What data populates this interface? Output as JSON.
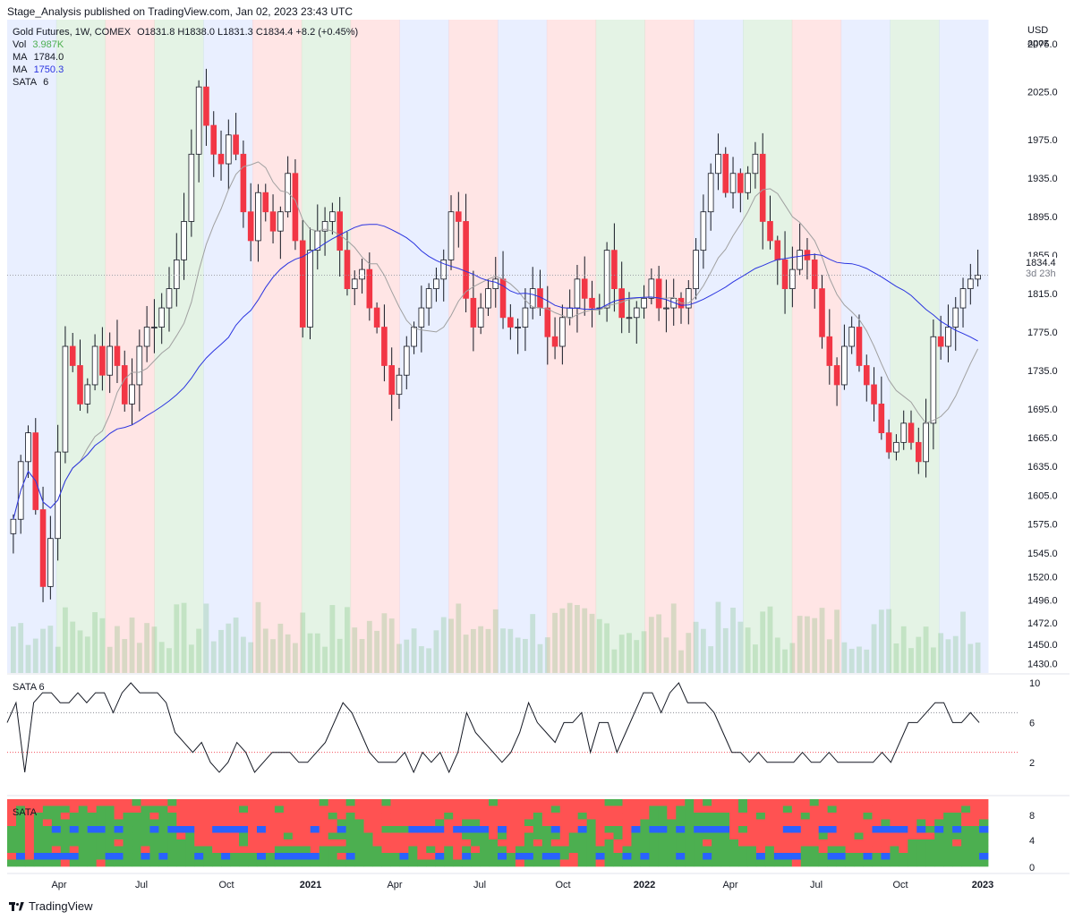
{
  "header": {
    "published": "Stage_Analysis published on TradingView.com, Jan 02, 2023 23:43 UTC"
  },
  "legend": {
    "instrument": "Gold Futures, 1W, COMEX",
    "ohlc": "O1831.8  H1838.0  L1831.3  C1834.4  +8.2 (+0.45%)",
    "vol_label": "Vol",
    "vol_value": "3.987K",
    "ma1_label": "MA",
    "ma1_value": "1784.0",
    "ma2_label": "MA",
    "ma2_value": "1750.3",
    "sata_label": "SATA",
    "sata_value": "6"
  },
  "price_axis": {
    "currency": "USD",
    "sub": "apoz",
    "ticks": [
      "2075.0",
      "2025.0",
      "1975.0",
      "1935.0",
      "1895.0",
      "1855.0",
      "1815.0",
      "1775.0",
      "1735.0",
      "1695.0",
      "1665.0",
      "1635.0",
      "1605.0",
      "1575.0",
      "1545.0",
      "1520.0",
      "1496.0",
      "1472.0",
      "1450.0",
      "1430.0"
    ],
    "last_price": "1834.4",
    "countdown": "3d 23h"
  },
  "pane2": {
    "label": "SATA 6",
    "ticks": [
      "10",
      "6",
      "2"
    ]
  },
  "pane3": {
    "label": "SATA",
    "ticks": [
      "8",
      "4",
      "0"
    ]
  },
  "x_axis": [
    "Apr",
    "Jul",
    "Oct",
    "2021",
    "Apr",
    "Jul",
    "Oct",
    "2022",
    "Apr",
    "Jul",
    "Oct",
    "2023"
  ],
  "footer": {
    "brand": "TradingView"
  },
  "colors": {
    "up": "#ffffff",
    "down": "#f23645",
    "stage_green": "#4caf50",
    "stage_red": "#ff5252",
    "stage_blue": "#2962ff",
    "ma_fast": "#a0a0a0",
    "ma_slow": "#2a34e0"
  },
  "chart_data": [
    {
      "type": "candlestick",
      "title": "Gold Futures, 1W, COMEX",
      "ylim": [
        1420,
        2100
      ],
      "stage_bands": [
        "blue",
        "green",
        "red",
        "green",
        "blue",
        "red",
        "green",
        "red",
        "blue",
        "red",
        "blue",
        "red",
        "green",
        "red",
        "blue",
        "green",
        "red",
        "blue",
        "green",
        "blue"
      ],
      "closes": [
        1580,
        1640,
        1670,
        1590,
        1510,
        1560,
        1650,
        1760,
        1740,
        1700,
        1720,
        1760,
        1730,
        1760,
        1740,
        1700,
        1720,
        1760,
        1780,
        1780,
        1800,
        1820,
        1850,
        1890,
        1960,
        2030,
        1990,
        1960,
        1950,
        1980,
        1960,
        1900,
        1870,
        1920,
        1900,
        1880,
        1900,
        1940,
        1870,
        1780,
        1860,
        1880,
        1890,
        1900,
        1860,
        1820,
        1830,
        1840,
        1800,
        1780,
        1740,
        1710,
        1730,
        1760,
        1780,
        1800,
        1820,
        1830,
        1850,
        1900,
        1890,
        1810,
        1780,
        1800,
        1820,
        1830,
        1790,
        1780,
        1780,
        1800,
        1820,
        1800,
        1770,
        1760,
        1790,
        1800,
        1830,
        1810,
        1800,
        1800,
        1860,
        1820,
        1790,
        1790,
        1800,
        1810,
        1830,
        1800,
        1800,
        1810,
        1800,
        1820,
        1860,
        1900,
        1940,
        1960,
        1920,
        1940,
        1920,
        1940,
        1960,
        1890,
        1870,
        1850,
        1820,
        1840,
        1860,
        1850,
        1820,
        1770,
        1740,
        1720,
        1760,
        1780,
        1740,
        1720,
        1700,
        1670,
        1650,
        1660,
        1680,
        1660,
        1640,
        1680,
        1770,
        1760,
        1780,
        1800,
        1820,
        1830,
        1834
      ]
    },
    {
      "type": "line",
      "title": "SATA 6",
      "ylim": [
        0,
        10
      ],
      "values": [
        6,
        8,
        1,
        8,
        9,
        9,
        8,
        8,
        9,
        8,
        9,
        9,
        7,
        9,
        10,
        9,
        9,
        9,
        8,
        5,
        4,
        3,
        4,
        2,
        1,
        2,
        4,
        3,
        1,
        2,
        3,
        3,
        3,
        2,
        2,
        3,
        4,
        6,
        8,
        7,
        5,
        3,
        2,
        2,
        2,
        3,
        1,
        3,
        2,
        3,
        1,
        3,
        7,
        5,
        4,
        3,
        2,
        3,
        5,
        8,
        6,
        5,
        4,
        6,
        6,
        7,
        3,
        6,
        6,
        3,
        5,
        7,
        9,
        9,
        7,
        9,
        10,
        8,
        8,
        8,
        7,
        5,
        3,
        3,
        2,
        3,
        2,
        2,
        2,
        2,
        3,
        2,
        2,
        3,
        2,
        2,
        2,
        2,
        2,
        3,
        2,
        4,
        6,
        6,
        7,
        8,
        8,
        6,
        6,
        7,
        6
      ]
    },
    {
      "type": "heatmap",
      "title": "SATA",
      "ylim": [
        0,
        10
      ],
      "rows": 10
    }
  ]
}
